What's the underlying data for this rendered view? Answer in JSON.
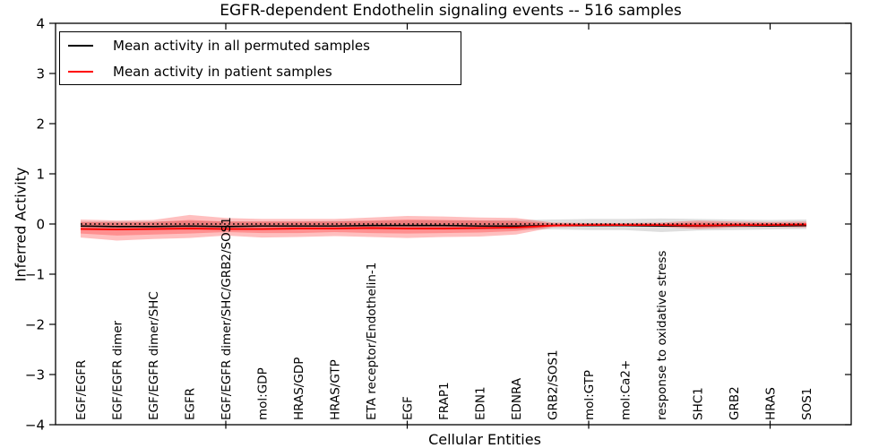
{
  "title": "EGFR-dependent Endothelin signaling events -- 516 samples",
  "axes": {
    "ylabel": "Inferred Activity",
    "xlabel": "Cellular Entities",
    "yticks": [
      {
        "v": 4,
        "label": "4"
      },
      {
        "v": 3,
        "label": "3"
      },
      {
        "v": 2,
        "label": "2"
      },
      {
        "v": 1,
        "label": "1"
      },
      {
        "v": 0,
        "label": "0"
      },
      {
        "v": -1,
        "label": "−1"
      },
      {
        "v": -2,
        "label": "−2"
      },
      {
        "v": -3,
        "label": "−3"
      },
      {
        "v": -4,
        "label": "−4"
      }
    ]
  },
  "legend": {
    "position": "upper left",
    "entries": [
      {
        "label": "Mean activity in all permuted samples",
        "color": "#000000"
      },
      {
        "label": "Mean activity in patient samples",
        "color": "#ff0000"
      }
    ]
  },
  "chart_data": {
    "type": "line",
    "title": "EGFR-dependent Endothelin signaling events -- 516 samples",
    "xlabel": "Cellular Entities",
    "ylabel": "Inferred Activity",
    "ylim": [
      -4,
      4
    ],
    "grid": false,
    "zero_line": 0,
    "x_major_ticks": [
      5,
      10,
      15,
      20
    ],
    "categories": [
      "EGF/EGFR",
      "EGF/EGFR dimer",
      "EGF/EGFR dimer/SHC",
      "EGFR",
      "EGF/EGFR dimer/SHC/GRB2/SOS1",
      "mol:GDP",
      "HRAS/GDP",
      "HRAS/GTP",
      "ETA receptor/Endothelin-1",
      "EGF",
      "FRAP1",
      "EDN1",
      "EDNRA",
      "GRB2/SOS1",
      "mol:GTP",
      "mol:Ca2+",
      "response to oxidative stress",
      "SHC1",
      "GRB2",
      "HRAS",
      "SOS1"
    ],
    "series": [
      {
        "name": "Mean activity in all permuted samples",
        "color": "#000000",
        "values": [
          -0.04,
          -0.05,
          -0.05,
          -0.04,
          -0.05,
          -0.04,
          -0.04,
          -0.04,
          -0.03,
          -0.03,
          -0.03,
          -0.04,
          -0.04,
          -0.03,
          -0.03,
          -0.03,
          -0.04,
          -0.04,
          -0.03,
          -0.04,
          -0.03
        ]
      },
      {
        "name": "Mean activity in patient samples",
        "color": "#ff0000",
        "values": [
          -0.1,
          -0.11,
          -0.1,
          -0.09,
          -0.1,
          -0.1,
          -0.09,
          -0.09,
          -0.08,
          -0.09,
          -0.09,
          -0.08,
          -0.07,
          -0.03,
          -0.02,
          -0.02,
          -0.02,
          -0.03,
          -0.02,
          -0.02,
          -0.01
        ]
      }
    ],
    "bands": [
      {
        "name": "permuted-samples-band",
        "color": "#000000",
        "opacity": 0.13,
        "upper": [
          0.05,
          0.05,
          0.05,
          0.06,
          0.05,
          0.05,
          0.05,
          0.06,
          0.06,
          0.07,
          0.07,
          0.07,
          0.08,
          0.09,
          0.1,
          0.1,
          0.11,
          0.1,
          0.09,
          0.08,
          0.09
        ],
        "lower": [
          -0.11,
          -0.12,
          -0.11,
          -0.11,
          -0.1,
          -0.1,
          -0.1,
          -0.1,
          -0.11,
          -0.11,
          -0.11,
          -0.11,
          -0.11,
          -0.11,
          -0.12,
          -0.12,
          -0.16,
          -0.13,
          -0.12,
          -0.11,
          -0.1
        ]
      },
      {
        "name": "patient-samples-band-outer",
        "color": "#ff0000",
        "opacity": 0.25,
        "upper": [
          0.09,
          0.07,
          0.08,
          0.18,
          0.12,
          0.1,
          0.1,
          0.1,
          0.13,
          0.16,
          0.15,
          0.13,
          0.12,
          0.03,
          0.02,
          0.02,
          0.03,
          0.07,
          0.05,
          0.04,
          0.05
        ],
        "lower": [
          -0.27,
          -0.33,
          -0.3,
          -0.28,
          -0.23,
          -0.27,
          -0.26,
          -0.24,
          -0.26,
          -0.28,
          -0.26,
          -0.25,
          -0.21,
          -0.07,
          -0.05,
          -0.05,
          -0.06,
          -0.1,
          -0.07,
          -0.06,
          -0.07
        ]
      },
      {
        "name": "patient-samples-band-inner",
        "color": "#ff0000",
        "opacity": 0.25,
        "upper": [
          0.04,
          0.03,
          0.04,
          0.08,
          0.05,
          0.05,
          0.05,
          0.05,
          0.07,
          0.09,
          0.08,
          0.07,
          0.06,
          0.01,
          0.01,
          0.01,
          0.01,
          0.03,
          0.02,
          0.02,
          0.02
        ],
        "lower": [
          -0.19,
          -0.23,
          -0.21,
          -0.19,
          -0.16,
          -0.18,
          -0.18,
          -0.16,
          -0.18,
          -0.19,
          -0.18,
          -0.17,
          -0.14,
          -0.05,
          -0.03,
          -0.03,
          -0.04,
          -0.07,
          -0.05,
          -0.04,
          -0.05
        ]
      }
    ]
  }
}
